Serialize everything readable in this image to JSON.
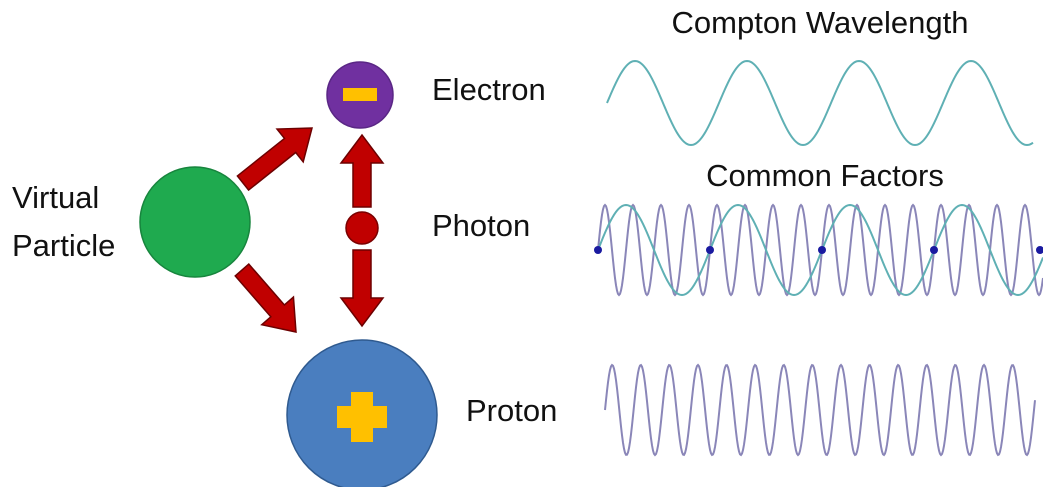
{
  "particles": {
    "virtual": [
      "Virtual",
      "Particle"
    ],
    "electron": "Electron",
    "photon": "Photon",
    "proton": "Proton"
  },
  "waves": {
    "top": "Compton Wavelength",
    "middle": "Common Factors"
  }
}
